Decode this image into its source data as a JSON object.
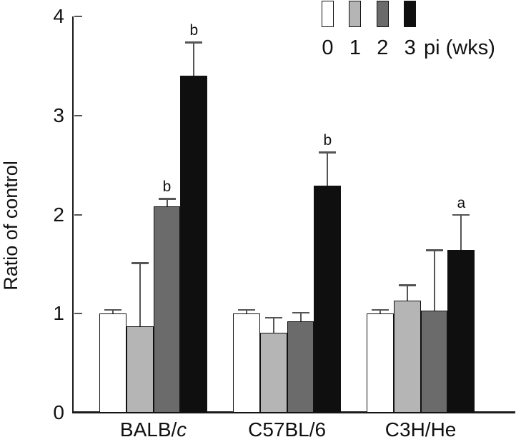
{
  "figure": {
    "background": "#ffffff",
    "axis_color": "#1a1a1a"
  },
  "chart_data": {
    "type": "bar",
    "title": "",
    "xlabel": "",
    "ylabel": "Ratio of control",
    "ylim": [
      0,
      4
    ],
    "yticks": [
      "0",
      "1",
      "2",
      "3",
      "4"
    ],
    "grid": "off",
    "legend_position": "top-right",
    "legend": {
      "labels": [
        "0",
        "1",
        "2",
        "3"
      ],
      "suffix": "pi (wks)"
    },
    "categories": [
      {
        "text": "BALB/",
        "italic": "c"
      },
      {
        "text": "C57BL/6",
        "italic": ""
      },
      {
        "text": "C3H/He",
        "italic": ""
      }
    ],
    "series": [
      {
        "name": "0",
        "color": "#ffffff",
        "values": [
          1.0,
          1.0,
          1.0
        ],
        "errors": [
          0.04,
          0.04,
          0.04
        ],
        "sig": [
          "",
          "",
          ""
        ]
      },
      {
        "name": "1",
        "color": "#b5b5b5",
        "values": [
          0.87,
          0.81,
          1.13
        ],
        "errors": [
          0.64,
          0.15,
          0.16
        ],
        "sig": [
          "",
          "",
          ""
        ]
      },
      {
        "name": "2",
        "color": "#6b6b6b",
        "values": [
          2.08,
          0.92,
          1.03
        ],
        "errors": [
          0.08,
          0.09,
          0.61
        ],
        "sig": [
          "b",
          "",
          ""
        ]
      },
      {
        "name": "3",
        "color": "#0f0f0f",
        "values": [
          3.4,
          2.29,
          1.64
        ],
        "errors": [
          0.34,
          0.34,
          0.36
        ],
        "sig": [
          "b",
          "b",
          "a"
        ]
      }
    ],
    "error_bar_color": "#555555"
  }
}
